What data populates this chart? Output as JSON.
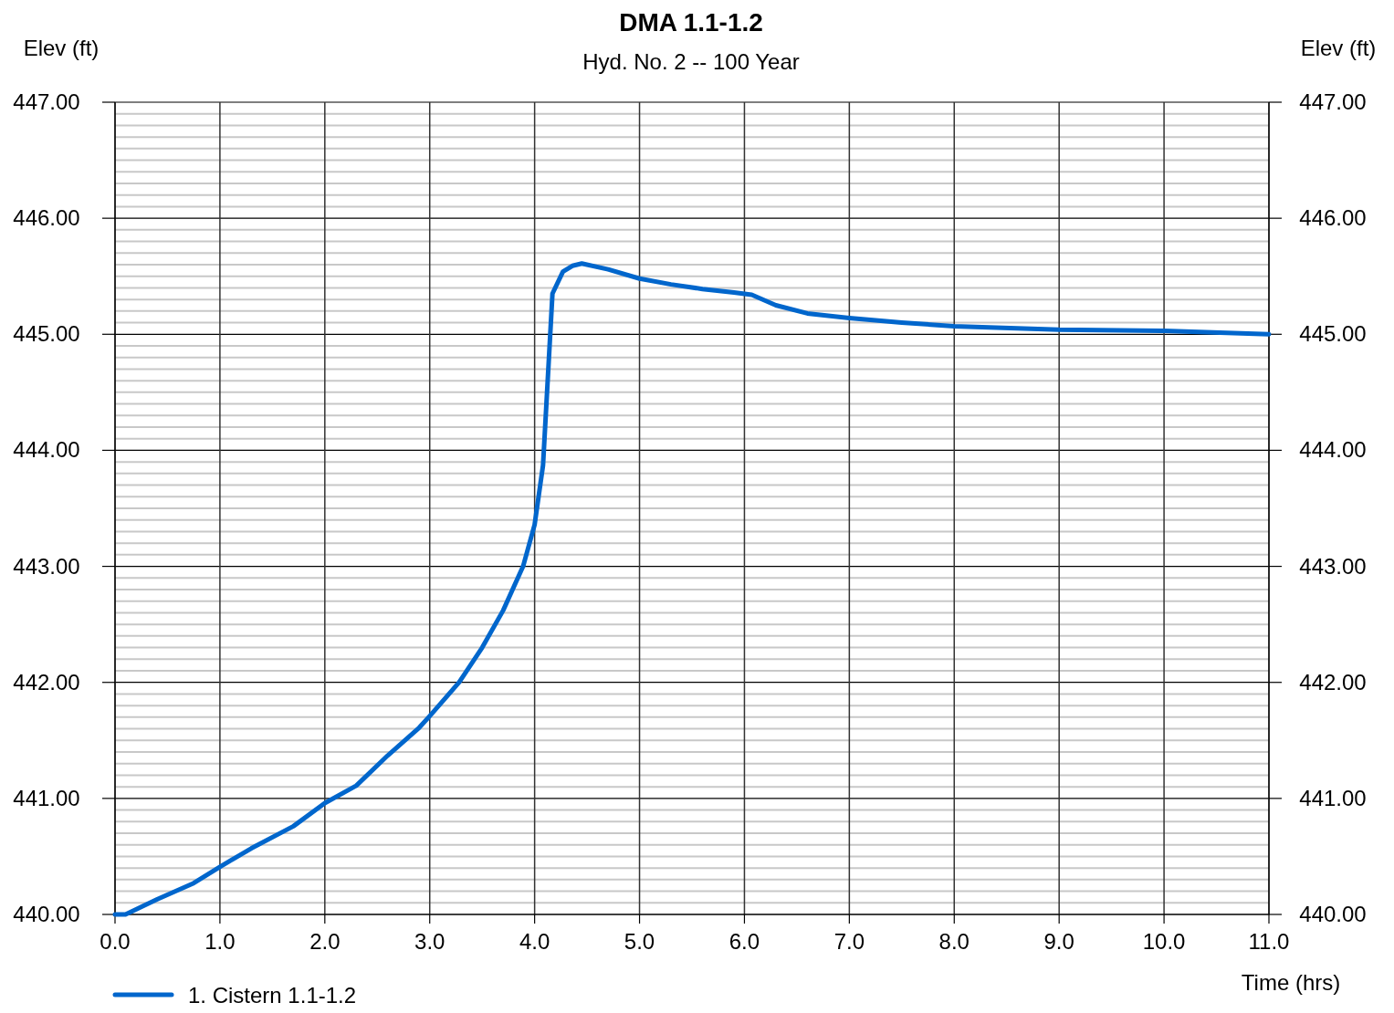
{
  "chart_data": {
    "type": "line",
    "title": "DMA 1.1-1.2",
    "subtitle": "Hyd. No. 2 -- 100 Year",
    "xlabel": "Time (hrs)",
    "ylabel": "Elev (ft)",
    "y2label": "Elev (ft)",
    "xlim": [
      0,
      11
    ],
    "xticks": [
      {
        "value": 0,
        "label": "0.0"
      },
      {
        "value": 1,
        "label": "1.0"
      },
      {
        "value": 2,
        "label": "2.0"
      },
      {
        "value": 3,
        "label": "3.0"
      },
      {
        "value": 4,
        "label": "4.0"
      },
      {
        "value": 5,
        "label": "5.0"
      },
      {
        "value": 6,
        "label": "6.0"
      },
      {
        "value": 7,
        "label": "7.0"
      },
      {
        "value": 8,
        "label": "8.0"
      },
      {
        "value": 9,
        "label": "9.0"
      },
      {
        "value": 10,
        "label": "10.0"
      },
      {
        "value": 11,
        "label": "11.0"
      }
    ],
    "ylim": [
      440,
      447
    ],
    "yticks": [
      {
        "value": 440,
        "label": "440.00"
      },
      {
        "value": 441,
        "label": "441.00"
      },
      {
        "value": 442,
        "label": "442.00"
      },
      {
        "value": 443,
        "label": "443.00"
      },
      {
        "value": 444,
        "label": "444.00"
      },
      {
        "value": 445,
        "label": "445.00"
      },
      {
        "value": 446,
        "label": "446.00"
      },
      {
        "value": 447,
        "label": "447.00"
      }
    ],
    "y2lim": [
      440,
      447
    ],
    "y2ticks": [
      {
        "value": 440,
        "label": "440.00"
      },
      {
        "value": 441,
        "label": "441.00"
      },
      {
        "value": 442,
        "label": "442.00"
      },
      {
        "value": 443,
        "label": "443.00"
      },
      {
        "value": 444,
        "label": "444.00"
      },
      {
        "value": 445,
        "label": "445.00"
      },
      {
        "value": 446,
        "label": "446.00"
      },
      {
        "value": 447,
        "label": "447.00"
      }
    ],
    "grid": true,
    "legend": "bottom left",
    "marker": "none",
    "line_style": "solid",
    "x": [
      0,
      0.1,
      0.4,
      0.75,
      1.0,
      1.3,
      1.7,
      2.0,
      2.3,
      2.6,
      2.9,
      3.0,
      3.28,
      3.5,
      3.7,
      3.89,
      4.0,
      4.08,
      4.17,
      4.27,
      4.36,
      4.45,
      4.7,
      5.0,
      5.3,
      5.6,
      5.9,
      6.07,
      6.3,
      6.6,
      7.0,
      7.5,
      8.0,
      9.0,
      10.0,
      11.0
    ],
    "series": [
      {
        "name": "1. Cistern 1.1-1.2",
        "color": "#0066cc",
        "values": [
          440.0,
          440.0,
          440.13,
          440.27,
          440.41,
          440.57,
          440.76,
          440.96,
          441.11,
          441.37,
          441.61,
          441.71,
          442.0,
          442.3,
          442.62,
          443.0,
          443.36,
          443.87,
          445.35,
          445.54,
          445.59,
          445.61,
          445.56,
          445.48,
          445.43,
          445.39,
          445.36,
          445.34,
          445.25,
          445.18,
          445.14,
          445.1,
          445.07,
          445.04,
          445.03,
          445.0
        ]
      }
    ]
  }
}
